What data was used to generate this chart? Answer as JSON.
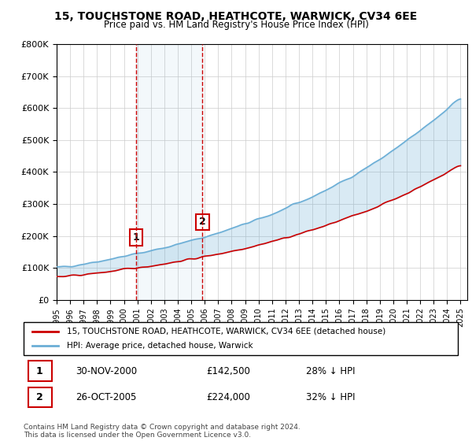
{
  "title": "15, TOUCHSTONE ROAD, HEATHCOTE, WARWICK, CV34 6EE",
  "subtitle": "Price paid vs. HM Land Registry's House Price Index (HPI)",
  "legend_line1": "15, TOUCHSTONE ROAD, HEATHCOTE, WARWICK, CV34 6EE (detached house)",
  "legend_line2": "HPI: Average price, detached house, Warwick",
  "table_row1": [
    "1",
    "30-NOV-2000",
    "£142,500",
    "28% ↓ HPI"
  ],
  "table_row2": [
    "2",
    "26-OCT-2005",
    "£224,000",
    "32% ↓ HPI"
  ],
  "footnote": "Contains HM Land Registry data © Crown copyright and database right 2024.\nThis data is licensed under the Open Government Licence v3.0.",
  "hpi_color": "#6baed6",
  "price_color": "#cc0000",
  "marker1_date_num": 2000.917,
  "marker2_date_num": 2005.833,
  "ylim": [
    0,
    800000
  ],
  "yticks": [
    0,
    100000,
    200000,
    300000,
    400000,
    500000,
    600000,
    700000,
    800000
  ],
  "xlim_start": 1995.0,
  "xlim_end": 2025.5
}
